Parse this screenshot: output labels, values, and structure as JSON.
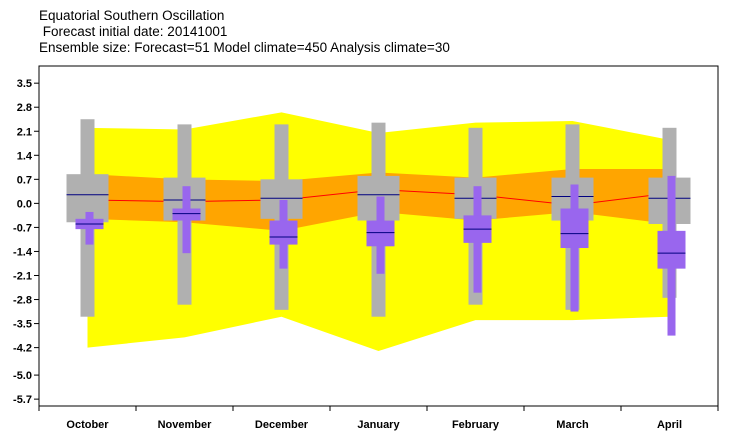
{
  "title_lines": [
    "Equatorial Southern Oscillation",
    " Forecast initial date: 20141001",
    "Ensemble size: Forecast=51 Model climate=450 Analysis climate=30"
  ],
  "chart_data": {
    "type": "box",
    "title": "Equatorial Southern Oscillation",
    "subtitle": "Forecast initial date: 20141001",
    "ensemble_info": "Ensemble size: Forecast=51 Model climate=450 Analysis climate=30",
    "categories": [
      "October",
      "November",
      "December",
      "January",
      "February",
      "March",
      "April"
    ],
    "y_ticks": [
      "3.5",
      "2.8",
      "2.1",
      "1.4",
      "0.7",
      "0.0",
      "-0.7",
      "-1.4",
      "-2.1",
      "-2.8",
      "-3.5",
      "-4.2",
      "-5.0",
      "-5.7"
    ],
    "ylim": [
      -5.9,
      4.0
    ],
    "colors": {
      "analysis_outer": "#ffff00",
      "analysis_inner": "#ffa500",
      "analysis_median": "#ff0000",
      "climate": "#b0b0b0",
      "forecast": "#9966ee",
      "median_line": "#000080"
    },
    "analysis_climate": {
      "min": [
        -4.2,
        -3.9,
        -3.3,
        -4.3,
        -3.4,
        -3.4,
        -3.3
      ],
      "q25": [
        -0.45,
        -0.55,
        -0.8,
        -0.25,
        -0.5,
        -0.25,
        -0.6
      ],
      "median": [
        0.1,
        0.05,
        0.1,
        0.4,
        0.25,
        -0.05,
        0.3
      ],
      "q75": [
        0.85,
        0.7,
        0.65,
        0.9,
        0.75,
        1.0,
        1.0
      ],
      "max": [
        2.2,
        2.15,
        2.65,
        2.05,
        2.35,
        2.4,
        1.85
      ]
    },
    "model_climate": {
      "min": [
        -3.3,
        -2.95,
        -3.1,
        -3.3,
        -2.95,
        -3.1,
        -2.75
      ],
      "q25": [
        -0.55,
        -0.5,
        -0.45,
        -0.5,
        -0.45,
        -0.5,
        -0.6
      ],
      "median": [
        0.25,
        0.1,
        0.15,
        0.25,
        0.15,
        0.2,
        0.15
      ],
      "q75": [
        0.85,
        0.75,
        0.7,
        0.8,
        0.75,
        0.75,
        0.75
      ],
      "max": [
        2.45,
        2.3,
        2.3,
        2.35,
        2.2,
        2.3,
        2.2
      ]
    },
    "forecast": {
      "min": [
        -1.2,
        -1.45,
        -1.9,
        -2.05,
        -2.6,
        -3.15,
        -3.85
      ],
      "q25": [
        -0.75,
        -0.5,
        -1.2,
        -1.25,
        -1.15,
        -1.3,
        -1.9
      ],
      "median": [
        -0.6,
        -0.3,
        -0.98,
        -0.85,
        -0.75,
        -0.88,
        -1.45
      ],
      "q75": [
        -0.45,
        -0.15,
        -0.5,
        -0.5,
        -0.35,
        -0.15,
        -0.8
      ],
      "max": [
        -0.25,
        0.5,
        0.1,
        0.2,
        0.5,
        0.55,
        0.8
      ]
    }
  }
}
